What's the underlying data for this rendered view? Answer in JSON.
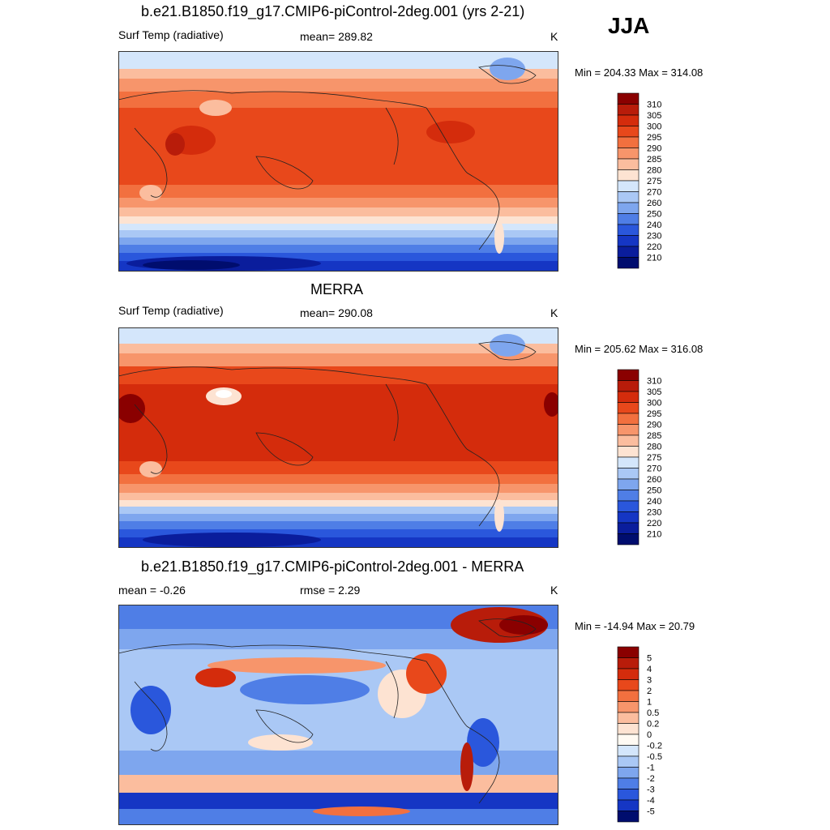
{
  "season": "JJA",
  "panels": [
    {
      "title": "b.e21.B1850.f19_g17.CMIP6-piControl-2deg.001 (yrs 2-21)",
      "left_label": "Surf Temp (radiative)",
      "center_label": "mean= 289.82",
      "units": "K",
      "minmax": "Min = 204.33 Max = 314.08",
      "colorbar_labels": [
        "310",
        "305",
        "300",
        "295",
        "290",
        "285",
        "280",
        "275",
        "270",
        "260",
        "250",
        "240",
        "230",
        "220",
        "210"
      ]
    },
    {
      "title": "MERRA",
      "left_label": "Surf Temp (radiative)",
      "center_label": "mean= 290.08",
      "units": "K",
      "minmax": "Min = 205.62 Max = 316.08",
      "colorbar_labels": [
        "310",
        "305",
        "300",
        "295",
        "290",
        "285",
        "280",
        "275",
        "270",
        "260",
        "250",
        "240",
        "230",
        "220",
        "210"
      ]
    },
    {
      "title": "b.e21.B1850.f19_g17.CMIP6-piControl-2deg.001 - MERRA",
      "left_label": "mean =  -0.26",
      "center_label": "rmse =   2.29",
      "units": "K",
      "minmax": "Min = -14.94 Max =  20.79",
      "colorbar_labels": [
        "5",
        "4",
        "3",
        "2",
        "1",
        "0.5",
        "0.2",
        "0",
        "-0.2",
        "-0.5",
        "-1",
        "-2",
        "-3",
        "-4",
        "-5"
      ]
    }
  ],
  "colors": {
    "abs_scale": [
      "#8a0000",
      "#b81c0a",
      "#d42c0c",
      "#e8481b",
      "#f2703f",
      "#f7956b",
      "#fbbd9e",
      "#fde3d2",
      "#d4e6fb",
      "#aac8f5",
      "#7ea6ee",
      "#4f7ee6",
      "#2a57dc",
      "#1536c4",
      "#0a1d9c",
      "#000d6e"
    ],
    "diff_scale": [
      "#8a0000",
      "#b81c0a",
      "#d42c0c",
      "#e8481b",
      "#f2703f",
      "#f7956b",
      "#fbbd9e",
      "#fde3d2",
      "#fffaf3",
      "#d4e6fb",
      "#aac8f5",
      "#7ea6ee",
      "#4f7ee6",
      "#2a57dc",
      "#1536c4",
      "#000d6e"
    ]
  },
  "chart_data": [
    {
      "type": "heatmap",
      "title": "b.e21.B1850.f19_g17.CMIP6-piControl-2deg.001 (yrs 2-21)",
      "variable": "Surf Temp (radiative)",
      "units": "K",
      "season": "JJA",
      "mean": 289.82,
      "min": 204.33,
      "max": 314.08,
      "levels": [
        210,
        220,
        230,
        240,
        250,
        260,
        270,
        275,
        280,
        285,
        290,
        295,
        300,
        305,
        310
      ]
    },
    {
      "type": "heatmap",
      "title": "MERRA",
      "variable": "Surf Temp (radiative)",
      "units": "K",
      "season": "JJA",
      "mean": 290.08,
      "min": 205.62,
      "max": 316.08,
      "levels": [
        210,
        220,
        230,
        240,
        250,
        260,
        270,
        275,
        280,
        285,
        290,
        295,
        300,
        305,
        310
      ]
    },
    {
      "type": "heatmap",
      "title": "b.e21.B1850.f19_g17.CMIP6-piControl-2deg.001 - MERRA",
      "units": "K",
      "season": "JJA",
      "mean": -0.26,
      "rmse": 2.29,
      "min": -14.94,
      "max": 20.79,
      "levels": [
        -5,
        -4,
        -3,
        -2,
        -1,
        -0.5,
        -0.2,
        0,
        0.2,
        0.5,
        1,
        2,
        3,
        4,
        5
      ]
    }
  ]
}
